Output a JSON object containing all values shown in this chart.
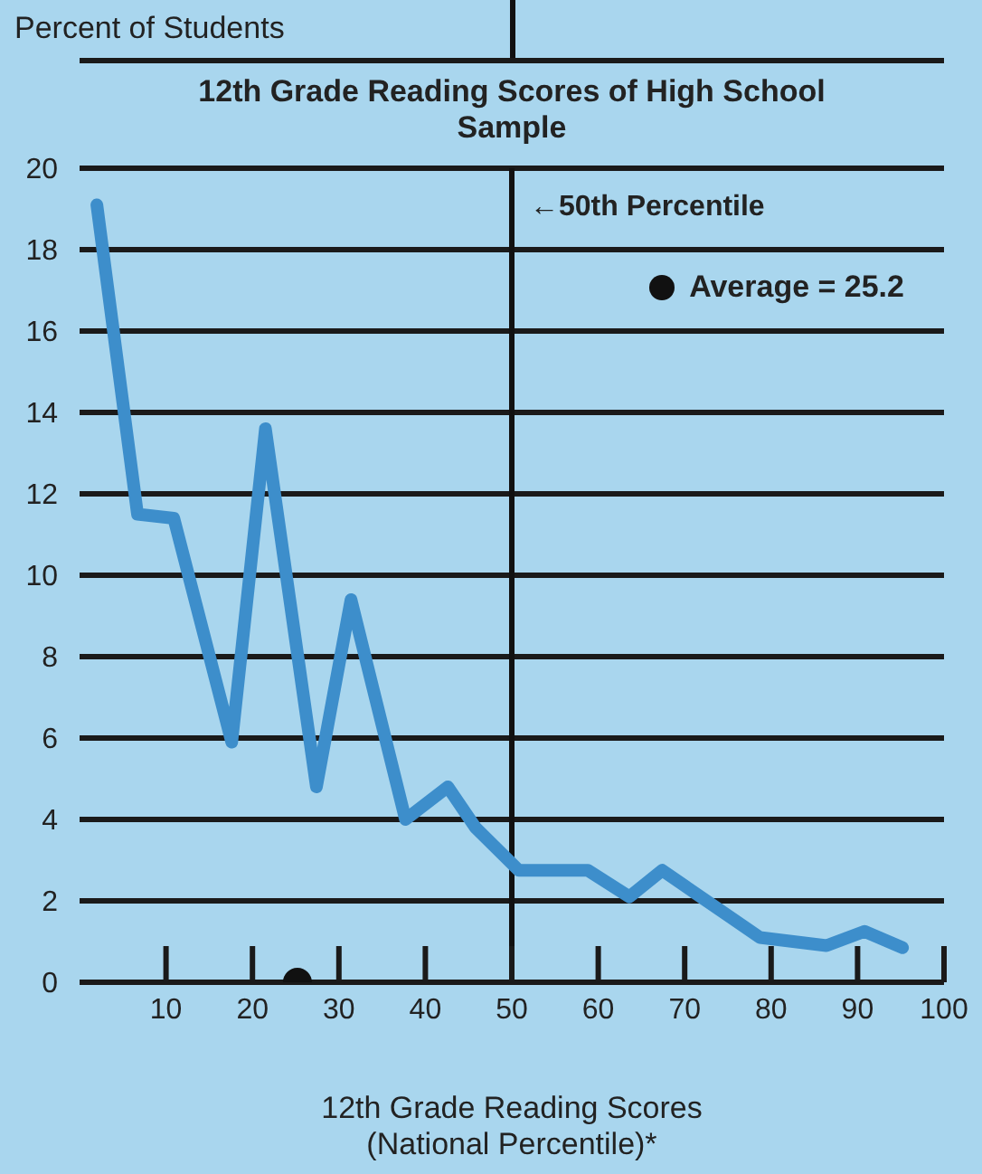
{
  "chart_data": {
    "type": "line",
    "title": "12th Grade Reading Scores of High School Sample",
    "ylabel": "Percent of Students",
    "xlabel": "12th Grade Reading Scores\n(National Percentile)*",
    "series": [
      {
        "marker": "none",
        "color": "#3d8ecb",
        "x": [
          2,
          6.7,
          10.9,
          17.6,
          21.5,
          27.4,
          31.4,
          37.7,
          42.6,
          45.8,
          50.8,
          58.8,
          63.6,
          67.4,
          78.7,
          86.4,
          90.8,
          95.2
        ],
        "values": [
          19.1,
          11.5,
          11.4,
          5.9,
          13.6,
          4.8,
          9.4,
          4.0,
          4.8,
          3.8,
          2.75,
          2.75,
          2.1,
          2.75,
          1.1,
          0.9,
          1.25,
          0.85
        ]
      },
      {
        "type": "scatter",
        "marker": "circle",
        "name": "Average = 25.2",
        "color": "#111111",
        "x": [
          25.2
        ],
        "values": [
          0
        ]
      }
    ],
    "xlim": [
      0,
      100
    ],
    "xticks": [
      10,
      20,
      30,
      40,
      50,
      60,
      70,
      80,
      90,
      100
    ],
    "ylim": [
      0,
      20
    ],
    "yticks": [
      0,
      2,
      4,
      6,
      8,
      10,
      12,
      14,
      16,
      18,
      20
    ],
    "grid": "y",
    "legend": "top right",
    "ref_lines": [
      {
        "axis": "x",
        "value": 50,
        "label": "←50th Percentile",
        "color": "#111111"
      }
    ]
  }
}
